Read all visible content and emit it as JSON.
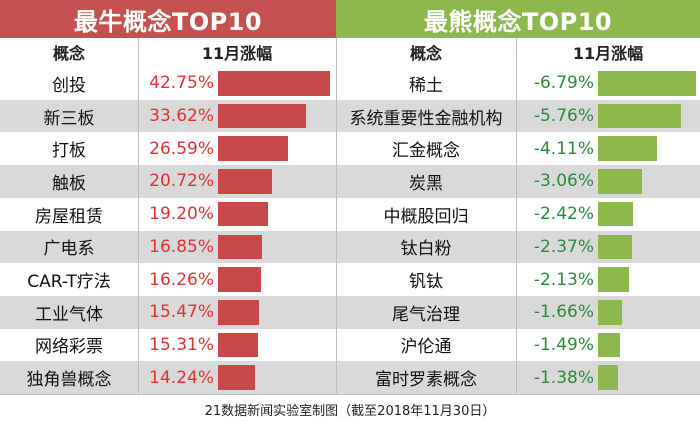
{
  "chart_data": [
    {
      "type": "table",
      "title": "最牛概念TOP10",
      "columns": [
        "概念",
        "11月涨幅"
      ],
      "categories": [
        "创投",
        "新三板",
        "打板",
        "触板",
        "房屋租赁",
        "广电系",
        "CAR-T疗法",
        "工业气体",
        "网络彩票",
        "独角兽概念"
      ],
      "values": [
        42.75,
        33.62,
        26.59,
        20.72,
        19.2,
        16.85,
        16.26,
        15.47,
        15.31,
        14.24
      ],
      "labels": [
        "42.75%",
        "33.62%",
        "26.59%",
        "20.72%",
        "19.20%",
        "16.85%",
        "16.26%",
        "15.47%",
        "15.31%",
        "14.24%"
      ],
      "unit": "%",
      "bar_color": "#c9484a"
    },
    {
      "type": "table",
      "title": "最熊概念TOP10",
      "columns": [
        "概念",
        "11月涨幅"
      ],
      "categories": [
        "稀土",
        "系统重要性金融机构",
        "汇金概念",
        "炭黑",
        "中概股回归",
        "钛白粉",
        "钒钛",
        "尾气治理",
        "沪伦通",
        "富时罗素概念"
      ],
      "values": [
        -6.79,
        -5.76,
        -4.11,
        -3.06,
        -2.42,
        -2.37,
        -2.13,
        -1.66,
        -1.49,
        -1.38
      ],
      "labels": [
        "-6.79%",
        "-5.76%",
        "-4.11%",
        "-3.06%",
        "-2.42%",
        "-2.37%",
        "-2.13%",
        "-1.66%",
        "-1.49%",
        "-1.38%"
      ],
      "unit": "%",
      "bar_color": "#8db84e"
    }
  ],
  "footer": "21数据新闻实验室制图（截至2018年11月30日）",
  "colors": {
    "bull_header": "#c4504f",
    "bear_header": "#8db84e",
    "row_stripe": "#d9d9d9"
  }
}
